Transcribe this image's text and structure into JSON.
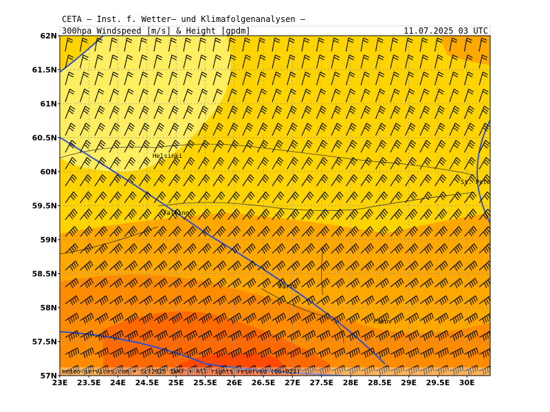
{
  "header": {
    "title": "CETA – Inst. f. Wetter– und Klimafolgenanalysen –",
    "subtitle": "300hpa Windspeed [m/s] & Height [gpdm]",
    "timestamp": "11.07.2025 03 UTC"
  },
  "map": {
    "lat_labels": [
      "62N",
      "61.5N",
      "61N",
      "60.5N",
      "60N",
      "59.5N",
      "59N",
      "58.5N",
      "58N",
      "57.5N",
      "57N"
    ],
    "lon_labels": [
      "23E",
      "23.5E",
      "24E",
      "24.5E",
      "25E",
      "25.5E",
      "26E",
      "26.5E",
      "27E",
      "27.5E",
      "28E",
      "28.5E",
      "29E",
      "29.5E",
      "30E"
    ],
    "places": [
      "Helsinki",
      "Tallinn",
      "Tartu",
      "Pskov",
      "St. Petersbg."
    ],
    "copyright": "meteo-services.com • (c)2025 IWKF • All rights reserved (06+021)"
  }
}
